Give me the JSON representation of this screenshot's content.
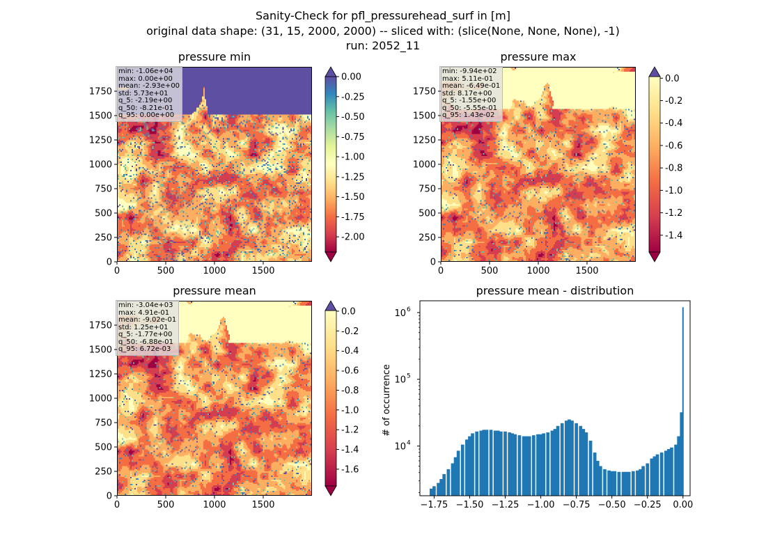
{
  "figure": {
    "title_line1": "Sanity-Check for pfl_pressurehead_surf in [m]",
    "title_line2": "original data shape: (31, 15, 2000, 2000) -- sliced with: (slice(None, None, None), -1)",
    "title_line3": "run: 2052_11"
  },
  "colors": {
    "spectral": [
      "#9e0142",
      "#d53e4f",
      "#f46d43",
      "#fdae61",
      "#fee08b",
      "#ffffbf",
      "#e6f598",
      "#abdda4",
      "#66c2a5",
      "#3288bd",
      "#5e4fa2"
    ],
    "histogram_bar": "#1f77b4"
  },
  "panels": {
    "min": {
      "title": "pressure min",
      "stats": [
        "min: -1.06e+04",
        "max: 0.00e+00",
        "mean: -2.93e+00",
        "std: 5.73e+01",
        "q_5: -2.19e+00",
        "q_50: -8.21e-01",
        "q_95: 0.00e+00"
      ],
      "x_ticks": [
        "0",
        "500",
        "1000",
        "1500"
      ],
      "y_ticks": [
        "0",
        "250",
        "500",
        "750",
        "1000",
        "1250",
        "1500",
        "1750"
      ],
      "colorbar": {
        "range": [
          -2.19,
          0.0
        ],
        "extend": "both",
        "ticks": [
          "0.00",
          "-0.25",
          "-0.50",
          "-0.75",
          "-1.00",
          "-1.25",
          "-1.50",
          "-1.75",
          "-2.00"
        ]
      }
    },
    "max": {
      "title": "pressure max",
      "stats": [
        "min: -9.94e+02",
        "max: 5.11e-01",
        "mean: -6.49e-01",
        "std: 8.17e+00",
        "q_5: -1.55e+00",
        "q_50: -5.55e-01",
        "q_95: 1.43e-02"
      ],
      "x_ticks": [
        "0",
        "500",
        "1000",
        "1500"
      ],
      "y_ticks": [
        "0",
        "250",
        "500",
        "750",
        "1000",
        "1250",
        "1500",
        "1750"
      ],
      "colorbar": {
        "range": [
          -1.55,
          0.0143
        ],
        "extend": "both",
        "ticks": [
          "0.0",
          "-0.2",
          "-0.4",
          "-0.6",
          "-0.8",
          "-1.0",
          "-1.2",
          "-1.4"
        ]
      }
    },
    "mean": {
      "title": "pressure mean",
      "stats": [
        "min: -3.04e+03",
        "max: 4.91e-01",
        "mean: -9.02e-01",
        "std: 1.25e+01",
        "q_5: -1.77e+00",
        "q_50: -6.88e-01",
        "q_95: 6.72e-03"
      ],
      "x_ticks": [
        "0",
        "500",
        "1000",
        "1500"
      ],
      "y_ticks": [
        "0",
        "250",
        "500",
        "750",
        "1000",
        "1250",
        "1500",
        "1750"
      ],
      "colorbar": {
        "range": [
          -1.77,
          0.00672
        ],
        "extend": "both",
        "ticks": [
          "0.0",
          "-0.2",
          "-0.4",
          "-0.6",
          "-0.8",
          "-1.0",
          "-1.2",
          "-1.4",
          "-1.6"
        ]
      }
    },
    "hist": {
      "title": "pressure mean - distribution",
      "ylabel": "# of occurrence",
      "x_ticks": [
        "−1.75",
        "−1.50",
        "−1.25",
        "−1.00",
        "−0.75",
        "−0.50",
        "−0.25",
        "0.00"
      ],
      "y_tick_bases": [
        "10",
        "10",
        "10"
      ],
      "y_tick_exps": [
        "4",
        "5",
        "6"
      ]
    }
  },
  "chart_data": [
    {
      "type": "heatmap",
      "title": "pressure min",
      "x_range": [
        0,
        2000
      ],
      "y_range": [
        0,
        2000
      ],
      "colormap": "Spectral",
      "color_range": [
        -2.19,
        0.0
      ]
    },
    {
      "type": "heatmap",
      "title": "pressure max",
      "x_range": [
        0,
        2000
      ],
      "y_range": [
        0,
        2000
      ],
      "colormap": "Spectral",
      "color_range": [
        -1.55,
        0.0143
      ]
    },
    {
      "type": "heatmap",
      "title": "pressure mean",
      "x_range": [
        0,
        2000
      ],
      "y_range": [
        0,
        2000
      ],
      "colormap": "Spectral",
      "color_range": [
        -1.77,
        0.00672
      ]
    },
    {
      "type": "bar",
      "title": "pressure mean - distribution",
      "ylabel": "# of occurrence",
      "yscale": "log",
      "xlim": [
        -1.85,
        0.05
      ],
      "ylim": [
        1800,
        1500000
      ],
      "x": [
        -1.77,
        -1.75,
        -1.72,
        -1.7,
        -1.68,
        -1.65,
        -1.62,
        -1.6,
        -1.58,
        -1.55,
        -1.52,
        -1.5,
        -1.48,
        -1.45,
        -1.42,
        -1.4,
        -1.38,
        -1.35,
        -1.32,
        -1.3,
        -1.28,
        -1.25,
        -1.22,
        -1.2,
        -1.18,
        -1.15,
        -1.12,
        -1.1,
        -1.08,
        -1.05,
        -1.02,
        -1.0,
        -0.98,
        -0.95,
        -0.92,
        -0.9,
        -0.88,
        -0.85,
        -0.82,
        -0.8,
        -0.78,
        -0.75,
        -0.72,
        -0.7,
        -0.68,
        -0.65,
        -0.62,
        -0.6,
        -0.58,
        -0.55,
        -0.52,
        -0.5,
        -0.48,
        -0.45,
        -0.42,
        -0.4,
        -0.38,
        -0.35,
        -0.32,
        -0.3,
        -0.28,
        -0.25,
        -0.22,
        -0.2,
        -0.18,
        -0.15,
        -0.12,
        -0.1,
        -0.08,
        -0.05,
        -0.03,
        -0.01,
        0.0
      ],
      "values": [
        2300,
        2500,
        2800,
        3200,
        3800,
        4500,
        5500,
        6800,
        8500,
        10500,
        12500,
        14000,
        15500,
        16500,
        17000,
        17500,
        17500,
        17500,
        17000,
        17000,
        16500,
        16500,
        16000,
        15500,
        15000,
        14500,
        14000,
        14000,
        14000,
        14500,
        15000,
        15000,
        15500,
        16000,
        17000,
        18000,
        20000,
        22000,
        24000,
        25000,
        24000,
        22000,
        20000,
        18000,
        16000,
        12000,
        8000,
        6000,
        5000,
        4500,
        4300,
        4200,
        4200,
        4100,
        4100,
        4100,
        4100,
        4200,
        4300,
        4500,
        5000,
        5500,
        6500,
        7000,
        7500,
        8000,
        8500,
        9000,
        9500,
        10500,
        14000,
        32000,
        1200000
      ]
    }
  ]
}
